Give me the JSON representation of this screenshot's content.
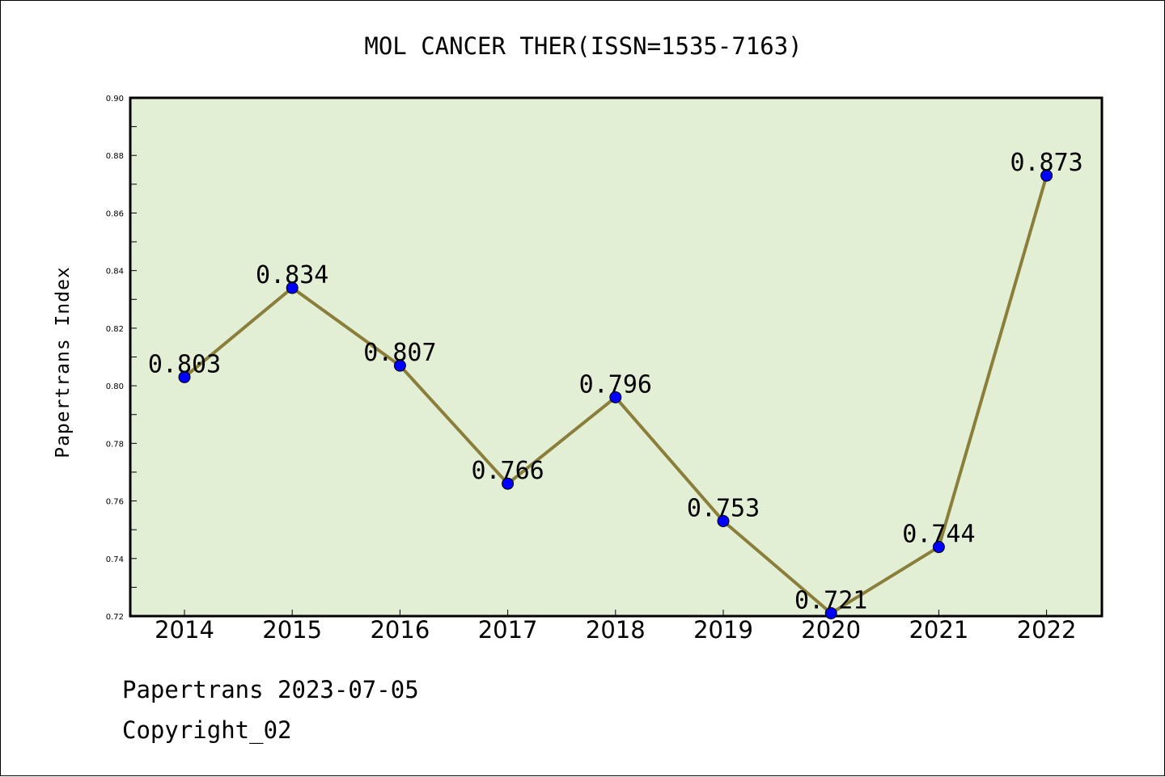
{
  "chart_data": {
    "type": "line",
    "title": "MOL CANCER THER(ISSN=1535-7163)",
    "xlabel": "",
    "ylabel": "Papertrans Index",
    "categories": [
      "2014",
      "2015",
      "2016",
      "2017",
      "2018",
      "2019",
      "2020",
      "2021",
      "2022"
    ],
    "values": [
      0.803,
      0.834,
      0.807,
      0.766,
      0.796,
      0.753,
      0.721,
      0.744,
      0.873
    ],
    "data_labels": [
      "0.803",
      "0.834",
      "0.807",
      "0.766",
      "0.796",
      "0.753",
      "0.721",
      "0.744",
      "0.873"
    ],
    "ylim": [
      0.72,
      0.9
    ],
    "yticks": [
      "0.72",
      "0.74",
      "0.76",
      "0.78",
      "0.80",
      "0.82",
      "0.84",
      "0.86",
      "0.88",
      "0.90"
    ],
    "grid": false,
    "colors": {
      "line": "#8b7d3a",
      "marker": "#0000ff",
      "plot_background": "#e2efd5"
    }
  },
  "footer": {
    "line1": "Papertrans 2023-07-05",
    "line2": "Copyright_02"
  }
}
